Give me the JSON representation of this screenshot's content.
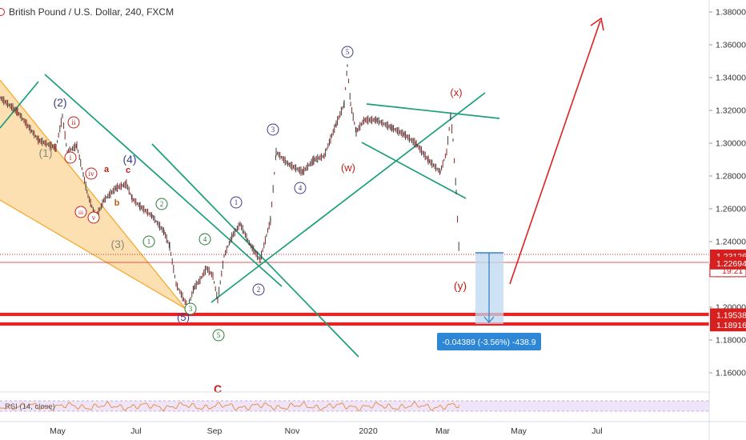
{
  "header": {
    "symbol_title": "British Pound / U.S. Dollar, 240, FXCM"
  },
  "price_axis": {
    "ticks": [
      "1.38000",
      "1.36000",
      "1.34000",
      "1.32000",
      "1.30000",
      "1.28000",
      "1.26000",
      "1.24000",
      "1.22000",
      "1.20000",
      "1.18000",
      "1.16000"
    ],
    "tick_values": [
      1.38,
      1.36,
      1.34,
      1.32,
      1.3,
      1.28,
      1.26,
      1.24,
      1.22,
      1.2,
      1.18,
      1.16
    ],
    "badges": [
      {
        "label": "1.23126",
        "value": 1.23126,
        "color": "#d62020"
      },
      {
        "label": "19:21",
        "value": 1.2225,
        "color": "#d62020"
      },
      {
        "label": "1.22694",
        "value": 1.22694,
        "color": "#d62020"
      },
      {
        "label": "1.19538",
        "value": 1.19538,
        "color": "#d62020"
      },
      {
        "label": "1.18916",
        "value": 1.18916,
        "color": "#d62020"
      }
    ]
  },
  "time_axis": {
    "labels": [
      "May",
      "Jul",
      "Sep",
      "Nov",
      "2020",
      "Mar",
      "May",
      "Jul"
    ]
  },
  "measure_label": "-0.04389 (-3.56%) -438.9",
  "rsi_label": "RSI (14, close)",
  "wave_labels": {
    "plain": [
      {
        "text": "(2)",
        "color": "#3a3a8c"
      },
      {
        "text": "(1)",
        "color": "#8a8a7a"
      },
      {
        "text": "(3)",
        "color": "#8a8a7a"
      },
      {
        "text": "(4)",
        "color": "#3a3a8c"
      },
      {
        "text": "(5)",
        "color": "#3a3a8c"
      },
      {
        "text": "a",
        "color": "#c0201a"
      },
      {
        "text": "b",
        "color": "#c06010"
      },
      {
        "text": "c",
        "color": "#c0201a"
      },
      {
        "text": "(x)",
        "color": "#c0201a"
      },
      {
        "text": "(w)",
        "color": "#c0201a"
      },
      {
        "text": "(y)",
        "color": "#c0201a"
      },
      {
        "text": "C",
        "color": "#c0201a"
      }
    ],
    "circled": [
      {
        "text": "ii",
        "color": "#c0201a"
      },
      {
        "text": "i",
        "color": "#c0201a"
      },
      {
        "text": "iv",
        "color": "#c0201a"
      },
      {
        "text": "iii",
        "color": "#c0201a"
      },
      {
        "text": "v",
        "color": "#c0201a"
      },
      {
        "text": "2",
        "color": "#2a7a3a"
      },
      {
        "text": "1",
        "color": "#2a7a3a"
      },
      {
        "text": "4",
        "color": "#2a7a3a"
      },
      {
        "text": "3",
        "color": "#2a7a3a"
      },
      {
        "text": "5",
        "color": "#2a7a3a"
      },
      {
        "text": "1",
        "color": "#3a3a8c"
      },
      {
        "text": "2",
        "color": "#3a3a8c"
      },
      {
        "text": "3",
        "color": "#3a3a8c"
      },
      {
        "text": "4",
        "color": "#3a3a8c"
      },
      {
        "text": "5",
        "color": "#3a3a8c"
      }
    ]
  },
  "colors": {
    "trend": "#1a9e7a",
    "fib": "#f5a623",
    "arrow": "#e02020",
    "support": "#ff1a1a",
    "measure_fill": "#bcd8f2",
    "measure_line": "#3b82c4",
    "rsi": "#e58b3a"
  }
}
